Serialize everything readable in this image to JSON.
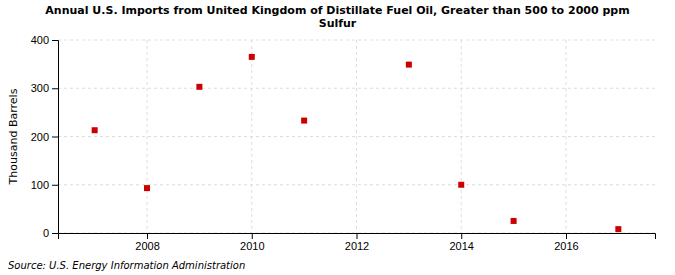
{
  "chart_data": {
    "type": "scatter",
    "title": "Annual U.S. Imports from United Kingdom of Distillate Fuel Oil, Greater than 500 to 2000 ppm\nSulfur",
    "ylabel": "Thousand Barrels",
    "source": "Source: U.S. Energy Information Administration",
    "x": [
      2007,
      2008,
      2009,
      2010,
      2011,
      2013,
      2014,
      2015,
      2017
    ],
    "values": [
      213,
      93,
      303,
      365,
      233,
      349,
      100,
      25,
      8
    ],
    "color": "#cc0000",
    "marker": "square",
    "xlim": [
      2006.3,
      2017.7
    ],
    "ylim": [
      0,
      400
    ],
    "xticks": [
      2008,
      2010,
      2012,
      2014,
      2016
    ],
    "yticks": [
      0,
      100,
      200,
      300,
      400
    ],
    "grid": true
  }
}
